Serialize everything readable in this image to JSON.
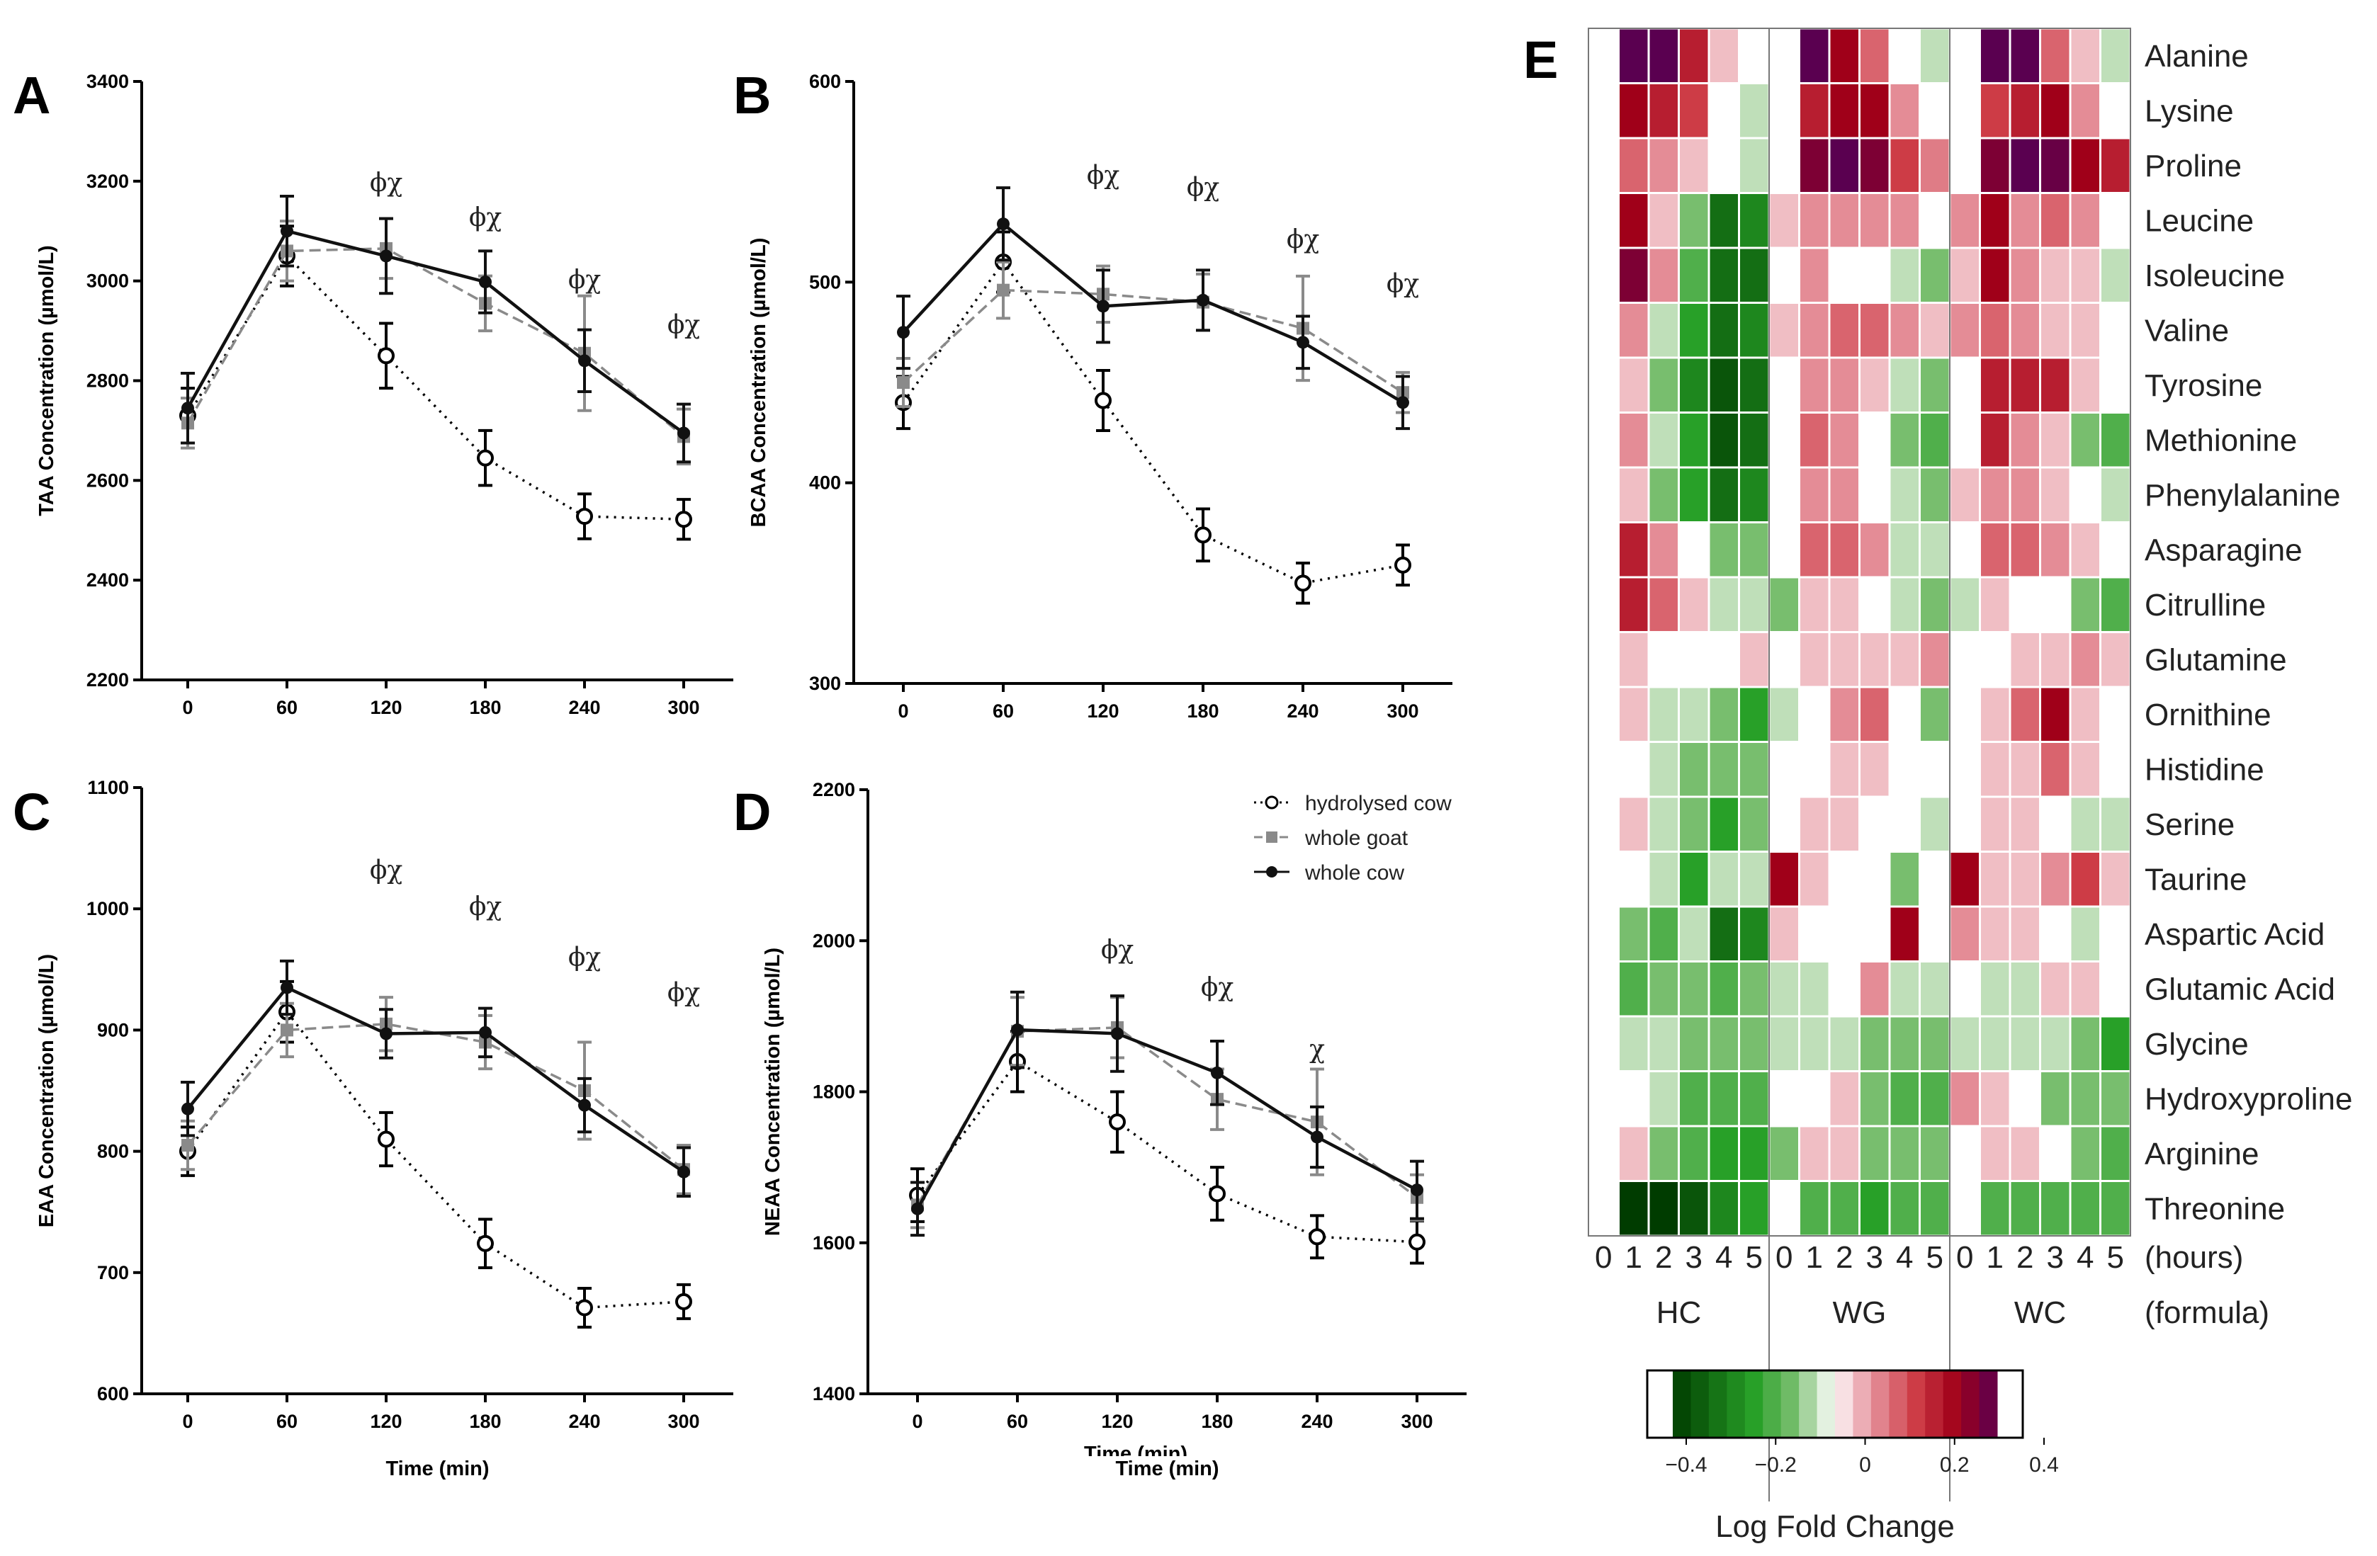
{
  "chart_data": [
    {
      "id": "A",
      "type": "line",
      "panel_label": "A",
      "ylabel": "TAA Concentration (µmol/L)",
      "xlabel": "",
      "x": [
        0,
        60,
        120,
        180,
        240,
        300
      ],
      "ylim": [
        2200,
        3400
      ],
      "yticks": [
        2200,
        2400,
        2600,
        2800,
        3000,
        3200,
        3400
      ],
      "series": [
        {
          "name": "hydrolysed cow",
          "values": [
            2730,
            3050,
            2850,
            2645,
            2528,
            2522
          ],
          "err": [
            55,
            60,
            65,
            55,
            45,
            40
          ]
        },
        {
          "name": "whole goat",
          "values": [
            2715,
            3060,
            3065,
            2955,
            2855,
            2688
          ],
          "err": [
            50,
            60,
            60,
            55,
            115,
            55
          ]
        },
        {
          "name": "whole cow",
          "values": [
            2745,
            3100,
            3050,
            2998,
            2840,
            2695
          ],
          "err": [
            70,
            70,
            75,
            62,
            62,
            58
          ]
        }
      ],
      "annotations": [
        {
          "x": 120,
          "y": 3180,
          "text": "ϕχ"
        },
        {
          "x": 180,
          "y": 3110,
          "text": "ϕχ"
        },
        {
          "x": 240,
          "y": 2985,
          "text": "ϕχ"
        },
        {
          "x": 300,
          "y": 2895,
          "text": "ϕχ"
        }
      ]
    },
    {
      "id": "B",
      "type": "line",
      "panel_label": "B",
      "ylabel": "BCAA Concentration (µmol/L)",
      "xlabel": "",
      "x": [
        0,
        60,
        120,
        180,
        240,
        300
      ],
      "ylim": [
        300,
        600
      ],
      "yticks": [
        300,
        400,
        500,
        600
      ],
      "series": [
        {
          "name": "hydrolysed cow",
          "values": [
            440,
            510,
            441,
            374,
            350,
            359
          ],
          "err": [
            13,
            15,
            15,
            13,
            10,
            10
          ]
        },
        {
          "name": "whole goat",
          "values": [
            450,
            496,
            494,
            490,
            477,
            445
          ],
          "err": [
            12,
            14,
            14,
            14,
            26,
            10
          ]
        },
        {
          "name": "whole cow",
          "values": [
            475,
            529,
            488,
            491,
            470,
            440
          ],
          "err": [
            18,
            18,
            18,
            15,
            13,
            13
          ]
        }
      ],
      "annotations": [
        {
          "x": 120,
          "y": 549,
          "text": "ϕχ"
        },
        {
          "x": 180,
          "y": 543,
          "text": "ϕχ"
        },
        {
          "x": 240,
          "y": 517,
          "text": "ϕχ"
        },
        {
          "x": 300,
          "y": 495,
          "text": "ϕχ"
        }
      ]
    },
    {
      "id": "C",
      "type": "line",
      "panel_label": "C",
      "ylabel": "EAA Concentration (µmol/L)",
      "xlabel": "Time (min)",
      "x": [
        0,
        60,
        120,
        180,
        240,
        300
      ],
      "ylim": [
        600,
        1100
      ],
      "yticks": [
        600,
        700,
        800,
        900,
        1000,
        1100
      ],
      "series": [
        {
          "name": "hydrolysed cow",
          "values": [
            800,
            915,
            810,
            724,
            671,
            676
          ],
          "err": [
            20,
            25,
            22,
            20,
            16,
            14
          ]
        },
        {
          "name": "whole goat",
          "values": [
            805,
            900,
            905,
            890,
            850,
            785
          ],
          "err": [
            20,
            22,
            22,
            22,
            40,
            20
          ]
        },
        {
          "name": "whole cow",
          "values": [
            835,
            935,
            897,
            898,
            838,
            783
          ],
          "err": [
            22,
            22,
            20,
            20,
            22,
            20
          ]
        }
      ],
      "annotations": [
        {
          "x": 120,
          "y": 1025,
          "text": "ϕχ"
        },
        {
          "x": 180,
          "y": 995,
          "text": "ϕχ"
        },
        {
          "x": 240,
          "y": 953,
          "text": "ϕχ"
        },
        {
          "x": 300,
          "y": 924,
          "text": "ϕχ"
        }
      ]
    },
    {
      "id": "D",
      "type": "line",
      "panel_label": "D",
      "ylabel": "NEAA Concentration (µmol/L)",
      "xlabel": "Time (min)",
      "x": [
        0,
        60,
        120,
        180,
        240,
        300
      ],
      "ylim": [
        1400,
        2200
      ],
      "yticks": [
        1400,
        1600,
        1800,
        2000,
        2200
      ],
      "series": [
        {
          "name": "hydrolysed cow",
          "values": [
            1663,
            1840,
            1760,
            1665,
            1608,
            1601
          ],
          "err": [
            35,
            40,
            40,
            35,
            28,
            28
          ]
        },
        {
          "name": "whole goat",
          "values": [
            1650,
            1880,
            1885,
            1790,
            1760,
            1660
          ],
          "err": [
            30,
            45,
            40,
            40,
            70,
            30
          ]
        },
        {
          "name": "whole cow",
          "values": [
            1645,
            1882,
            1877,
            1825,
            1740,
            1670
          ],
          "err": [
            35,
            50,
            50,
            42,
            40,
            38
          ]
        }
      ],
      "annotations": [
        {
          "x": 120,
          "y": 1977,
          "text": "ϕχ"
        },
        {
          "x": 180,
          "y": 1927,
          "text": "ϕχ"
        },
        {
          "x": 240,
          "y": 1845,
          "text": "χ"
        }
      ]
    },
    {
      "id": "E",
      "type": "heatmap",
      "panel_label": "E",
      "rows": [
        "Alanine",
        "Lysine",
        "Proline",
        "Leucine",
        "Isoleucine",
        "Valine",
        "Tyrosine",
        "Methionine",
        "Phenylalanine",
        "Asparagine",
        "Citrulline",
        "Glutamine",
        "Ornithine",
        "Histidine",
        "Serine",
        "Taurine",
        "Aspartic Acid",
        "Glutamic Acid",
        "Glycine",
        "Hydroxyproline",
        "Arginine",
        "Threonine"
      ],
      "groups": [
        "HC",
        "WG",
        "WC"
      ],
      "hours": [
        "0",
        "1",
        "2",
        "3",
        "4",
        "5"
      ],
      "hours_label": "(hours)",
      "formula_label": "(formula)",
      "colorbar": {
        "range": [
          -0.4,
          0.4
        ],
        "tick_labels": [
          "−0.4",
          "−0.2",
          "0",
          "0.2",
          "0.4"
        ],
        "title": "Log Fold Change"
      },
      "values": [
        [
          0,
          0.4,
          0.4,
          0.25,
          0.05,
          0,
          0,
          0.4,
          0.3,
          0.15,
          0,
          -0.05,
          0,
          0.4,
          0.4,
          0.15,
          0.05,
          -0.05
        ],
        [
          0,
          0.3,
          0.25,
          0.2,
          0,
          -0.05,
          0,
          0.25,
          0.3,
          0.3,
          0.1,
          0,
          0,
          0.2,
          0.25,
          0.3,
          0.1,
          0
        ],
        [
          0,
          0.15,
          0.1,
          0.05,
          0,
          -0.05,
          0,
          0.35,
          0.4,
          0.35,
          0.2,
          0.12,
          0,
          0.35,
          0.4,
          0.38,
          0.3,
          0.25
        ],
        [
          0,
          0.3,
          0.05,
          -0.1,
          -0.3,
          -0.25,
          0.05,
          0.1,
          0.1,
          0.1,
          0.1,
          0,
          0.1,
          0.3,
          0.1,
          0.15,
          0.1,
          0
        ],
        [
          0,
          0.35,
          0.1,
          -0.15,
          -0.3,
          -0.3,
          0,
          0.1,
          0,
          0,
          -0.05,
          -0.1,
          0.05,
          0.3,
          0.1,
          0.05,
          0.05,
          -0.05
        ],
        [
          0,
          0.1,
          -0.05,
          -0.2,
          -0.3,
          -0.25,
          0.05,
          0.1,
          0.15,
          0.15,
          0.1,
          0.05,
          0.1,
          0.15,
          0.1,
          0.05,
          0.05,
          0
        ],
        [
          0,
          0.05,
          -0.1,
          -0.25,
          -0.35,
          -0.3,
          0,
          0.1,
          0.1,
          0.05,
          -0.05,
          -0.1,
          0,
          0.25,
          0.25,
          0.25,
          0.05,
          0
        ],
        [
          0,
          0.1,
          -0.05,
          -0.2,
          -0.35,
          -0.3,
          0,
          0.15,
          0.1,
          0,
          -0.1,
          -0.15,
          0,
          0.25,
          0.1,
          0.05,
          -0.1,
          -0.15
        ],
        [
          0,
          0.05,
          -0.1,
          -0.2,
          -0.3,
          -0.25,
          0,
          0.1,
          0.1,
          0,
          -0.05,
          -0.1,
          0.05,
          0.1,
          0.1,
          0.05,
          0,
          -0.05
        ],
        [
          0,
          0.25,
          0.1,
          0,
          -0.1,
          -0.1,
          0,
          0.15,
          0.15,
          0.1,
          -0.05,
          -0.05,
          0,
          0.15,
          0.15,
          0.1,
          0.05,
          0
        ],
        [
          0,
          0.25,
          0.15,
          0.05,
          -0.05,
          -0.05,
          -0.1,
          0.05,
          0.05,
          0,
          -0.05,
          -0.1,
          -0.05,
          0.05,
          0,
          0,
          -0.1,
          -0.15
        ],
        [
          0,
          0.05,
          0,
          0,
          0,
          0.05,
          0,
          0.05,
          0.05,
          0.05,
          0.05,
          0.1,
          0,
          0,
          0.05,
          0.05,
          0.1,
          0.05
        ],
        [
          0,
          0.05,
          -0.05,
          -0.05,
          -0.1,
          -0.2,
          -0.05,
          0,
          0.1,
          0.15,
          0,
          -0.1,
          0,
          0.05,
          0.15,
          0.3,
          0.05,
          0
        ],
        [
          0,
          0,
          -0.05,
          -0.1,
          -0.1,
          -0.1,
          0,
          0,
          0.05,
          0.05,
          0,
          0,
          0,
          0.05,
          0.05,
          0.15,
          0.05,
          0
        ],
        [
          0,
          0.05,
          -0.05,
          -0.1,
          -0.2,
          -0.1,
          0,
          0.05,
          0.05,
          0,
          0,
          -0.05,
          0,
          0.05,
          0.05,
          0,
          -0.05,
          -0.05
        ],
        [
          0,
          0,
          -0.05,
          -0.2,
          -0.05,
          -0.05,
          0.3,
          0.05,
          0,
          0,
          -0.1,
          0,
          0.3,
          0.05,
          0.05,
          0.1,
          0.2,
          0.05
        ],
        [
          0,
          -0.1,
          -0.15,
          -0.05,
          -0.3,
          -0.25,
          0.05,
          0,
          0,
          0,
          0.3,
          0,
          0.1,
          0.05,
          0.05,
          0,
          -0.05,
          0
        ],
        [
          0,
          -0.15,
          -0.1,
          -0.1,
          -0.15,
          -0.1,
          -0.05,
          -0.05,
          0,
          0.1,
          -0.05,
          -0.05,
          0,
          -0.05,
          -0.05,
          0.05,
          0.05,
          0
        ],
        [
          0,
          -0.05,
          -0.05,
          -0.1,
          -0.1,
          -0.1,
          -0.05,
          -0.05,
          -0.05,
          -0.1,
          -0.1,
          -0.1,
          -0.05,
          -0.05,
          -0.05,
          -0.05,
          -0.1,
          -0.2
        ],
        [
          0,
          0,
          -0.05,
          -0.15,
          -0.15,
          -0.15,
          0,
          0,
          0.05,
          -0.1,
          -0.15,
          -0.15,
          0.1,
          0.05,
          0,
          -0.1,
          -0.1,
          -0.1
        ],
        [
          0,
          0.05,
          -0.1,
          -0.15,
          -0.2,
          -0.2,
          -0.1,
          0.05,
          0.05,
          -0.1,
          -0.1,
          -0.1,
          0,
          0.05,
          0.05,
          0,
          -0.1,
          -0.15
        ],
        [
          0,
          -0.4,
          -0.4,
          -0.35,
          -0.25,
          -0.2,
          0,
          -0.15,
          -0.15,
          -0.2,
          -0.15,
          -0.15,
          0,
          -0.15,
          -0.15,
          -0.15,
          -0.15,
          -0.15
        ]
      ]
    }
  ],
  "legend": {
    "items": [
      {
        "name": "hydrolysed cow",
        "style": "open-circle-dotted"
      },
      {
        "name": "whole goat",
        "style": "grey-square-dashed"
      },
      {
        "name": "whole cow",
        "style": "black-circle-solid"
      }
    ]
  },
  "clipped_label": "Time (min)",
  "colors": {
    "hydrolysed_cow": "#000000",
    "whole_goat": "#8a8a8a",
    "whole_cow": "#111111"
  }
}
